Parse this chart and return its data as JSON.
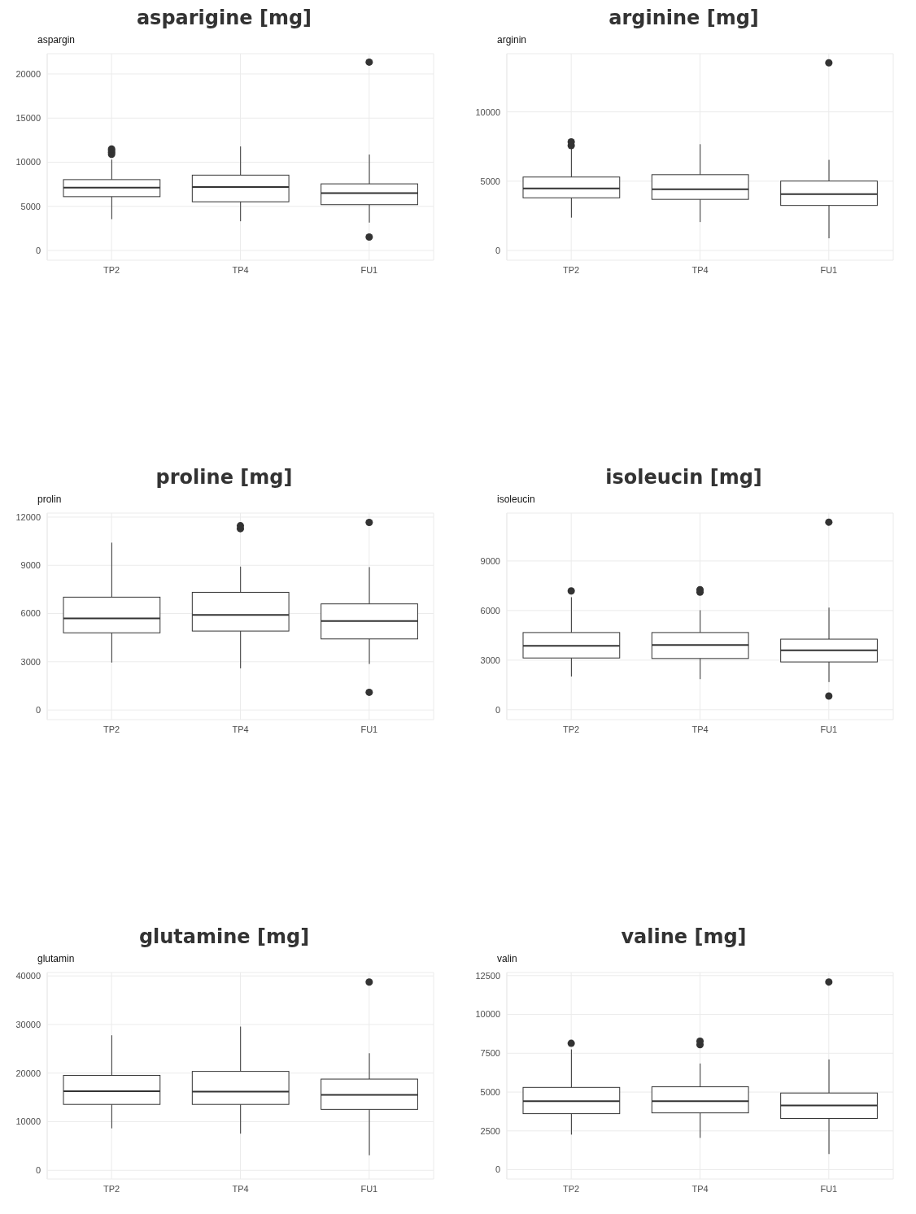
{
  "chart_data": [
    {
      "type": "box",
      "title": "asparigine [mg]",
      "ylabel": "aspargin",
      "categories": [
        "TP2",
        "TP4",
        "FU1"
      ],
      "ylim": [
        -1100,
        22300
      ],
      "yticks": [
        0,
        5000,
        10000,
        15000,
        20000
      ],
      "grid": true,
      "boxes": [
        {
          "low": 3550,
          "q1": 6100,
          "median": 7130,
          "q3": 8030,
          "high": 10300,
          "outliers": [
            10900,
            11100,
            11300,
            11500
          ]
        },
        {
          "low": 3310,
          "q1": 5520,
          "median": 7190,
          "q3": 8540,
          "high": 11790
        },
        {
          "low": 3160,
          "q1": 5190,
          "median": 6510,
          "q3": 7550,
          "high": 10870,
          "outliers": [
            21340,
            1520
          ]
        }
      ]
    },
    {
      "type": "box",
      "title": "arginine [mg]",
      "ylabel": "arginin",
      "categories": [
        "TP2",
        "TP4",
        "FU1"
      ],
      "ylim": [
        -700,
        14200
      ],
      "yticks": [
        0,
        5000,
        10000
      ],
      "grid": true,
      "boxes": [
        {
          "low": 2370,
          "q1": 3800,
          "median": 4470,
          "q3": 5300,
          "high": 7450,
          "outliers": [
            7570,
            7840
          ]
        },
        {
          "low": 2050,
          "q1": 3690,
          "median": 4420,
          "q3": 5470,
          "high": 7670
        },
        {
          "low": 880,
          "q1": 3250,
          "median": 4070,
          "q3": 5010,
          "high": 6540,
          "outliers": [
            13540
          ]
        }
      ]
    },
    {
      "type": "box",
      "title": "proline [mg]",
      "ylabel": "prolin",
      "categories": [
        "TP2",
        "TP4",
        "FU1"
      ],
      "ylim": [
        -600,
        12250
      ],
      "yticks": [
        0,
        3000,
        6000,
        9000,
        12000
      ],
      "grid": true,
      "boxes": [
        {
          "low": 2950,
          "q1": 4800,
          "median": 5700,
          "q3": 7020,
          "high": 10410
        },
        {
          "low": 2590,
          "q1": 4910,
          "median": 5910,
          "q3": 7320,
          "high": 8920,
          "outliers": [
            11280,
            11460
          ]
        },
        {
          "low": 2860,
          "q1": 4420,
          "median": 5530,
          "q3": 6600,
          "high": 8890,
          "outliers": [
            11670,
            1100
          ]
        }
      ]
    },
    {
      "type": "box",
      "title": "isoleucin [mg]",
      "ylabel": "isoleucin",
      "categories": [
        "TP2",
        "TP4",
        "FU1"
      ],
      "ylim": [
        -600,
        11900
      ],
      "yticks": [
        0,
        3000,
        6000,
        9000
      ],
      "grid": true,
      "boxes": [
        {
          "low": 2010,
          "q1": 3130,
          "median": 3870,
          "q3": 4670,
          "high": 6810,
          "outliers": [
            7190
          ]
        },
        {
          "low": 1850,
          "q1": 3100,
          "median": 3920,
          "q3": 4670,
          "high": 6020,
          "outliers": [
            7110,
            7260
          ]
        },
        {
          "low": 1670,
          "q1": 2890,
          "median": 3600,
          "q3": 4270,
          "high": 6180,
          "outliers": [
            11350,
            830
          ]
        }
      ]
    },
    {
      "type": "box",
      "title": "glutamine [mg]",
      "ylabel": "glutamin",
      "categories": [
        "TP2",
        "TP4",
        "FU1"
      ],
      "ylim": [
        -1800,
        40700
      ],
      "yticks": [
        0,
        10000,
        20000,
        30000,
        40000
      ],
      "grid": true,
      "boxes": [
        {
          "low": 8630,
          "q1": 13560,
          "median": 16280,
          "q3": 19530,
          "high": 27780
        },
        {
          "low": 7540,
          "q1": 13560,
          "median": 16170,
          "q3": 20350,
          "high": 29570
        },
        {
          "low": 3090,
          "q1": 12530,
          "median": 15520,
          "q3": 18770,
          "high": 24090,
          "outliers": [
            38740
          ]
        }
      ]
    },
    {
      "type": "box",
      "title": "valine [mg]",
      "ylabel": "valin",
      "categories": [
        "TP2",
        "TP4",
        "FU1"
      ],
      "ylim": [
        -600,
        12700
      ],
      "yticks": [
        0,
        2500,
        5000,
        7500,
        10000,
        12500
      ],
      "grid": true,
      "boxes": [
        {
          "low": 2260,
          "q1": 3610,
          "median": 4410,
          "q3": 5300,
          "high": 7750,
          "outliers": [
            8140
          ]
        },
        {
          "low": 2050,
          "q1": 3660,
          "median": 4410,
          "q3": 5340,
          "high": 6840,
          "outliers": [
            8050,
            8280
          ]
        },
        {
          "low": 1010,
          "q1": 3300,
          "median": 4140,
          "q3": 4940,
          "high": 7100,
          "outliers": [
            12090
          ]
        }
      ]
    }
  ]
}
